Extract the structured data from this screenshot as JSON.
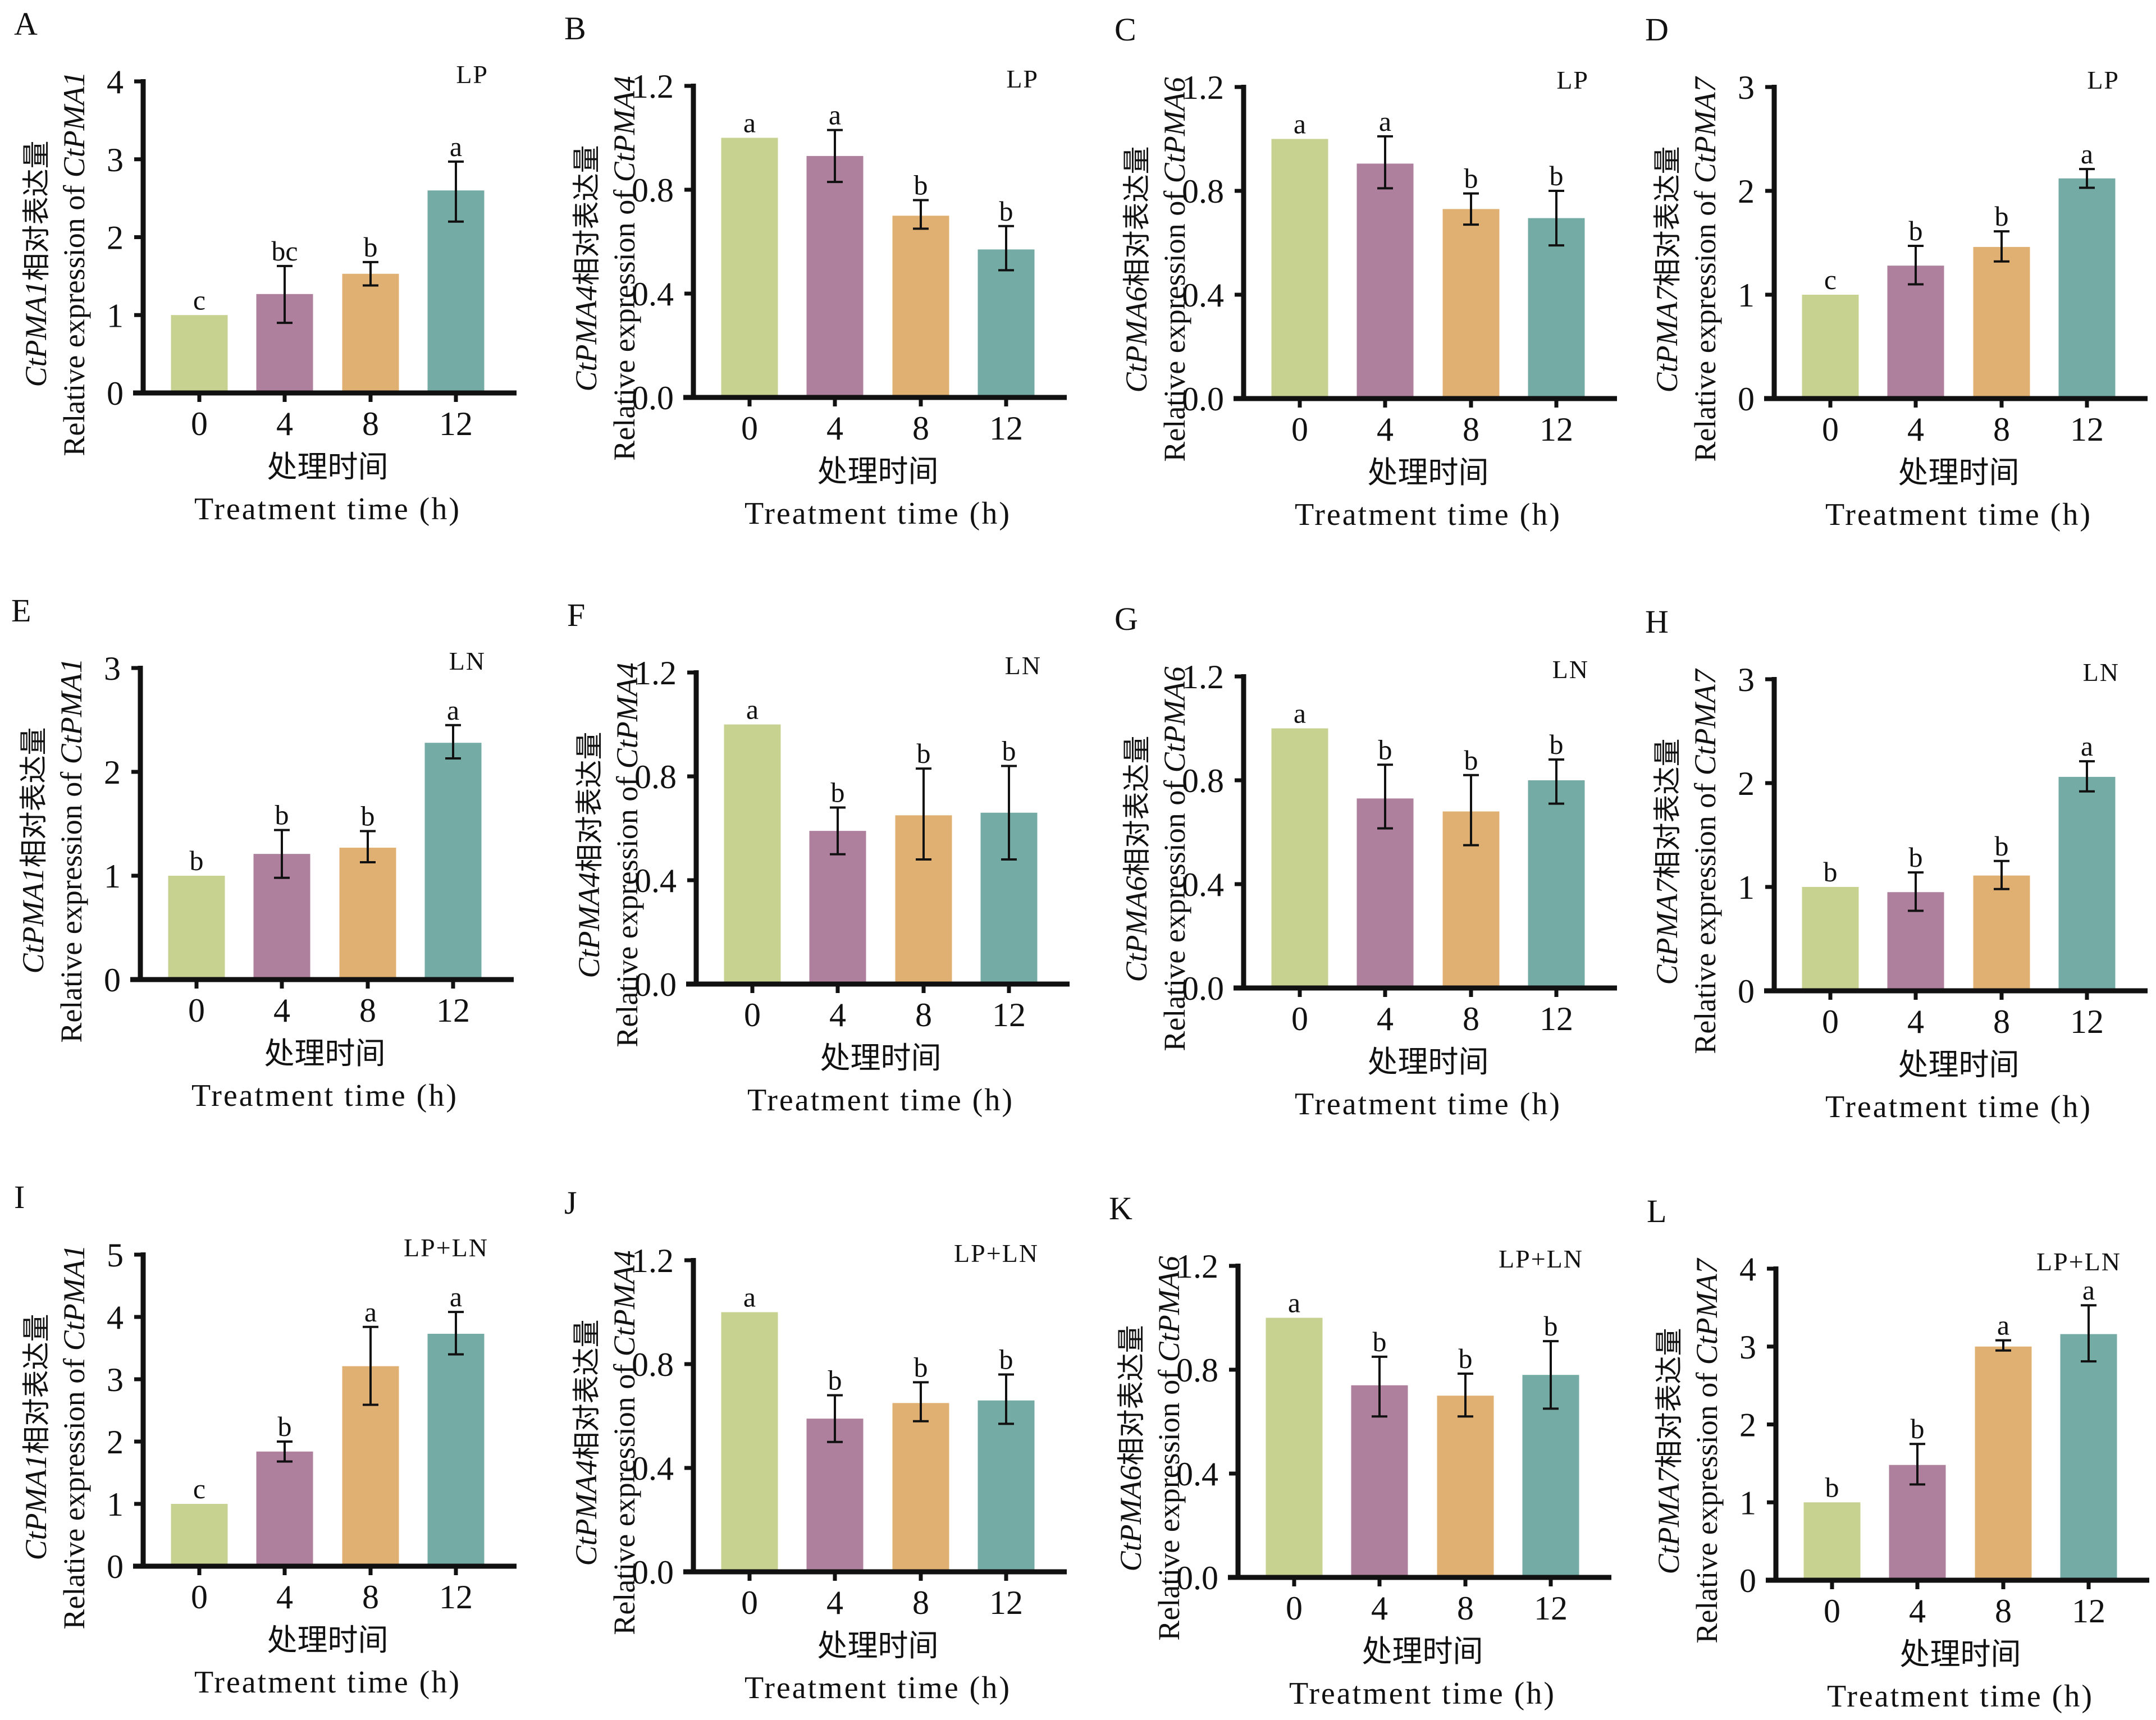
{
  "figure": {
    "categories": [
      "0",
      "4",
      "8",
      "12"
    ],
    "x_title_zh": "处理时间",
    "x_title_en": "Treatment time (h)",
    "y_title_zh_suffix": "相对表达量",
    "y_title_en_prefix": "Relative expression of ",
    "bar_colors": [
      "#c8d290",
      "#ae809d",
      "#e0b072",
      "#74aba4"
    ],
    "axis_color": "#111111"
  },
  "chart_data": [
    {
      "panel": "A",
      "type": "bar",
      "gene": "CtPMA1",
      "condition": "LP",
      "ylabel": "CtPMA1相对表达量 / Relative expression of CtPMA1",
      "xlabel": "处理时间 / Treatment time (h)",
      "categories": [
        "0",
        "4",
        "8",
        "12"
      ],
      "ylim": [
        0,
        4
      ],
      "yticks": [
        "0",
        "1",
        "2",
        "3",
        "4"
      ],
      "values": [
        1.0,
        1.27,
        1.53,
        2.6
      ],
      "error_low": [
        1.0,
        0.9,
        1.38,
        2.2
      ],
      "error_high": [
        1.0,
        1.63,
        1.68,
        2.97
      ],
      "significance": [
        "c",
        "bc",
        "b",
        "a"
      ]
    },
    {
      "panel": "B",
      "type": "bar",
      "gene": "CtPMA4",
      "condition": "LP",
      "ylabel": "CtPMA4相对表达量 / Relative expression of CtPMA4",
      "xlabel": "处理时间 / Treatment time (h)",
      "categories": [
        "0",
        "4",
        "8",
        "12"
      ],
      "ylim": [
        0,
        1.2
      ],
      "yticks": [
        "0.0",
        "0.4",
        "0.8",
        "1.2"
      ],
      "values": [
        1.0,
        0.93,
        0.7,
        0.57
      ],
      "error_low": [
        1.0,
        0.83,
        0.65,
        0.49
      ],
      "error_high": [
        1.0,
        1.03,
        0.76,
        0.66
      ],
      "significance": [
        "a",
        "a",
        "b",
        "b"
      ]
    },
    {
      "panel": "C",
      "type": "bar",
      "gene": "CtPMA6",
      "condition": "LP",
      "ylabel": "CtPMA6相对表达量 / Relative expression of CtPMA6",
      "xlabel": "处理时间 / Treatment time (h)",
      "categories": [
        "0",
        "4",
        "8",
        "12"
      ],
      "ylim": [
        0,
        1.2
      ],
      "yticks": [
        "0.0",
        "0.4",
        "0.8",
        "1.2"
      ],
      "values": [
        1.0,
        0.905,
        0.73,
        0.695
      ],
      "error_low": [
        1.0,
        0.81,
        0.67,
        0.59
      ],
      "error_high": [
        1.0,
        1.01,
        0.79,
        0.8
      ],
      "significance": [
        "a",
        "a",
        "b",
        "b"
      ]
    },
    {
      "panel": "D",
      "type": "bar",
      "gene": "CtPMA7",
      "condition": "LP",
      "ylabel": "CtPMA7相对表达量 / Relative expression of CtPMA7",
      "xlabel": "处理时间 / Treatment time (h)",
      "categories": [
        "0",
        "4",
        "8",
        "12"
      ],
      "ylim": [
        0,
        3
      ],
      "yticks": [
        "0",
        "1",
        "2",
        "3"
      ],
      "values": [
        1.0,
        1.28,
        1.46,
        2.12
      ],
      "error_low": [
        1.0,
        1.1,
        1.32,
        2.03
      ],
      "error_high": [
        1.0,
        1.47,
        1.61,
        2.21
      ],
      "significance": [
        "c",
        "b",
        "b",
        "a"
      ]
    },
    {
      "panel": "E",
      "type": "bar",
      "gene": "CtPMA1",
      "condition": "LN",
      "ylabel": "CtPMA1相对表达量 / Relative expression of CtPMA1",
      "xlabel": "处理时间 / Treatment time (h)",
      "categories": [
        "0",
        "4",
        "8",
        "12"
      ],
      "ylim": [
        0,
        3
      ],
      "yticks": [
        "0",
        "1",
        "2",
        "3"
      ],
      "values": [
        1.0,
        1.21,
        1.27,
        2.28
      ],
      "error_low": [
        1.0,
        0.98,
        1.13,
        2.13
      ],
      "error_high": [
        1.0,
        1.44,
        1.43,
        2.45
      ],
      "significance": [
        "b",
        "b",
        "b",
        "a"
      ]
    },
    {
      "panel": "F",
      "type": "bar",
      "gene": "CtPMA4",
      "condition": "LN",
      "ylabel": "CtPMA4相对表达量 / Relative expression of CtPMA4",
      "xlabel": "处理时间 / Treatment time (h)",
      "categories": [
        "0",
        "4",
        "8",
        "12"
      ],
      "ylim": [
        0,
        1.2
      ],
      "yticks": [
        "0.0",
        "0.4",
        "0.8",
        "1.2"
      ],
      "values": [
        1.0,
        0.59,
        0.65,
        0.66
      ],
      "error_low": [
        1.0,
        0.5,
        0.48,
        0.48
      ],
      "error_high": [
        1.0,
        0.68,
        0.83,
        0.84
      ],
      "significance": [
        "a",
        "b",
        "b",
        "b"
      ]
    },
    {
      "panel": "G",
      "type": "bar",
      "gene": "CtPMA6",
      "condition": "LN",
      "ylabel": "CtPMA6相对表达量 / Relative expression of CtPMA6",
      "xlabel": "处理时间 / Treatment time (h)",
      "categories": [
        "0",
        "4",
        "8",
        "12"
      ],
      "ylim": [
        0,
        1.2
      ],
      "yticks": [
        "0.0",
        "0.4",
        "0.8",
        "1.2"
      ],
      "values": [
        1.0,
        0.73,
        0.68,
        0.8
      ],
      "error_low": [
        1.0,
        0.615,
        0.55,
        0.71
      ],
      "error_high": [
        1.0,
        0.86,
        0.82,
        0.88
      ],
      "significance": [
        "a",
        "b",
        "b",
        "b"
      ]
    },
    {
      "panel": "H",
      "type": "bar",
      "gene": "CtPMA7",
      "condition": "LN",
      "ylabel": "CtPMA7相对表达量 / Relative expression of CtPMA7",
      "xlabel": "处理时间 / Treatment time (h)",
      "categories": [
        "0",
        "4",
        "8",
        "12"
      ],
      "ylim": [
        0,
        3
      ],
      "yticks": [
        "0",
        "1",
        "2",
        "3"
      ],
      "values": [
        1.0,
        0.95,
        1.11,
        2.06
      ],
      "error_low": [
        1.0,
        0.77,
        0.98,
        1.92
      ],
      "error_high": [
        1.0,
        1.14,
        1.25,
        2.21
      ],
      "significance": [
        "b",
        "b",
        "b",
        "a"
      ]
    },
    {
      "panel": "I",
      "type": "bar",
      "gene": "CtPMA1",
      "condition": "LP+LN",
      "ylabel": "CtPMA1相对表达量 / Relative expression of CtPMA1",
      "xlabel": "处理时间 / Treatment time (h)",
      "categories": [
        "0",
        "4",
        "8",
        "12"
      ],
      "ylim": [
        0,
        5
      ],
      "yticks": [
        "0",
        "1",
        "2",
        "3",
        "4",
        "5"
      ],
      "values": [
        1.0,
        1.84,
        3.21,
        3.73
      ],
      "error_low": [
        1.0,
        1.68,
        2.59,
        3.4
      ],
      "error_high": [
        1.0,
        2.0,
        3.84,
        4.08
      ],
      "significance": [
        "c",
        "b",
        "a",
        "a"
      ]
    },
    {
      "panel": "J",
      "type": "bar",
      "gene": "CtPMA4",
      "condition": "LP+LN",
      "ylabel": "CtPMA4相对表达量 / Relative expression of CtPMA4",
      "xlabel": "处理时间 / Treatment time (h)",
      "categories": [
        "0",
        "4",
        "8",
        "12"
      ],
      "ylim": [
        0,
        1.2
      ],
      "yticks": [
        "0.0",
        "0.4",
        "0.8",
        "1.2"
      ],
      "values": [
        1.0,
        0.59,
        0.65,
        0.66
      ],
      "error_low": [
        1.0,
        0.5,
        0.58,
        0.57
      ],
      "error_high": [
        1.0,
        0.68,
        0.73,
        0.76
      ],
      "significance": [
        "a",
        "b",
        "b",
        "b"
      ]
    },
    {
      "panel": "K",
      "type": "bar",
      "gene": "CtPMA6",
      "condition": "LP+LN",
      "ylabel": "CtPMA6相对表达量 / Relative expression of CtPMA6",
      "xlabel": "处理时间 / Treatment time (h)",
      "categories": [
        "0",
        "4",
        "8",
        "12"
      ],
      "ylim": [
        0,
        1.2
      ],
      "yticks": [
        "0.0",
        "0.4",
        "0.8",
        "1.2"
      ],
      "values": [
        1.0,
        0.74,
        0.7,
        0.78
      ],
      "error_low": [
        1.0,
        0.62,
        0.62,
        0.65
      ],
      "error_high": [
        1.0,
        0.85,
        0.785,
        0.91
      ],
      "significance": [
        "a",
        "b",
        "b",
        "b"
      ]
    },
    {
      "panel": "L",
      "type": "bar",
      "gene": "CtPMA7",
      "condition": "LP+LN",
      "ylabel": "CtPMA7相对表达量 / Relative expression of CtPMA7",
      "xlabel": "处理时间 / Treatment time (h)",
      "categories": [
        "0",
        "4",
        "8",
        "12"
      ],
      "ylim": [
        0,
        4
      ],
      "yticks": [
        "0",
        "1",
        "2",
        "3",
        "4"
      ],
      "values": [
        1.0,
        1.48,
        3.0,
        3.16
      ],
      "error_low": [
        1.0,
        1.23,
        2.95,
        2.81
      ],
      "error_high": [
        1.0,
        1.75,
        3.08,
        3.53
      ],
      "significance": [
        "b",
        "b",
        "a",
        "a"
      ]
    }
  ]
}
